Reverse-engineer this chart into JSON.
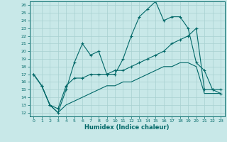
{
  "xlabel": "Humidex (Indice chaleur)",
  "bg_color": "#c8e8e8",
  "grid_color": "#a8d0d0",
  "line_color": "#006868",
  "xlim": [
    -0.5,
    23.5
  ],
  "ylim": [
    11.5,
    26.5
  ],
  "yticks": [
    12,
    13,
    14,
    15,
    16,
    17,
    18,
    19,
    20,
    21,
    22,
    23,
    24,
    25,
    26
  ],
  "xticks": [
    0,
    1,
    2,
    3,
    4,
    5,
    6,
    7,
    8,
    9,
    10,
    11,
    12,
    13,
    14,
    15,
    16,
    17,
    18,
    19,
    20,
    21,
    22,
    23
  ],
  "series1_x": [
    0,
    1,
    2,
    3,
    4,
    5,
    6,
    7,
    8,
    9,
    10,
    11,
    12,
    13,
    14,
    15,
    16,
    17,
    18,
    19,
    20,
    21,
    22,
    23
  ],
  "series1_y": [
    17.0,
    15.5,
    13.0,
    12.0,
    15.0,
    18.5,
    21.0,
    19.5,
    20.0,
    17.0,
    17.0,
    19.0,
    22.0,
    24.5,
    25.5,
    26.5,
    24.0,
    24.5,
    24.5,
    23.0,
    18.5,
    17.5,
    15.0,
    15.0
  ],
  "series2_x": [
    0,
    1,
    2,
    3,
    4,
    5,
    6,
    7,
    8,
    9,
    10,
    11,
    12,
    13,
    14,
    15,
    16,
    17,
    18,
    19,
    20,
    21,
    22,
    23
  ],
  "series2_y": [
    17.0,
    15.5,
    13.0,
    12.5,
    15.5,
    16.5,
    16.5,
    17.0,
    17.0,
    17.0,
    17.5,
    17.5,
    18.0,
    18.5,
    19.0,
    19.5,
    20.0,
    21.0,
    21.5,
    22.0,
    23.0,
    15.0,
    15.0,
    14.5
  ],
  "series3_x": [
    0,
    1,
    2,
    3,
    4,
    5,
    6,
    7,
    8,
    9,
    10,
    11,
    12,
    13,
    14,
    15,
    16,
    17,
    18,
    19,
    20,
    21,
    22,
    23
  ],
  "series3_y": [
    17.0,
    15.5,
    13.0,
    12.0,
    13.0,
    13.5,
    14.0,
    14.5,
    15.0,
    15.5,
    15.5,
    16.0,
    16.0,
    16.5,
    17.0,
    17.5,
    18.0,
    18.0,
    18.5,
    18.5,
    18.0,
    14.5,
    14.5,
    14.5
  ]
}
